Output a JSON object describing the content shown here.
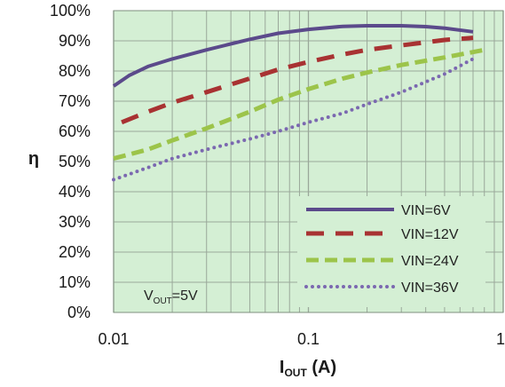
{
  "chart_data": {
    "type": "line",
    "title": "",
    "xlabel": "I",
    "xlabel_sub": "OUT",
    "xlabel_unit": " (A)",
    "ylabel": "η",
    "x_scale": "log",
    "xlim": [
      0.01,
      1
    ],
    "ylim": [
      0,
      100
    ],
    "x_ticks": [
      0.01,
      0.1,
      1
    ],
    "x_tick_labels": [
      "0.01",
      "0.1",
      "1"
    ],
    "y_ticks": [
      0,
      10,
      20,
      30,
      40,
      50,
      60,
      70,
      80,
      90,
      100
    ],
    "y_tick_labels": [
      "0%",
      "10%",
      "20%",
      "30%",
      "40%",
      "50%",
      "60%",
      "70%",
      "80%",
      "90%",
      "100%"
    ],
    "grid": true,
    "background_color": "#d4efd4",
    "grid_color": "#9aa89a",
    "legend_position": "bottom-right",
    "annotation": {
      "prefix": "V",
      "sub": "OUT",
      "suffix": "=5V"
    },
    "series": [
      {
        "name": "VIN=6V",
        "color": "#5b4a8b",
        "dash": "solid",
        "x": [
          0.01,
          0.012,
          0.015,
          0.02,
          0.03,
          0.05,
          0.07,
          0.1,
          0.15,
          0.2,
          0.3,
          0.4,
          0.5,
          0.7
        ],
        "y": [
          75,
          78.5,
          81.5,
          84,
          87,
          90.5,
          92.5,
          93.8,
          94.8,
          95,
          95,
          94.7,
          94.2,
          93
        ]
      },
      {
        "name": "VIN=12V",
        "color": "#a83232",
        "dash": "long-dash",
        "x": [
          0.011,
          0.015,
          0.02,
          0.03,
          0.05,
          0.07,
          0.1,
          0.15,
          0.2,
          0.3,
          0.4,
          0.5,
          0.7
        ],
        "y": [
          63,
          66.5,
          69.5,
          73,
          77.5,
          80.5,
          83,
          85.5,
          87,
          88.5,
          89.5,
          90.3,
          91
        ]
      },
      {
        "name": "VIN=24V",
        "color": "#9cc44a",
        "dash": "dash",
        "x": [
          0.01,
          0.015,
          0.02,
          0.03,
          0.05,
          0.07,
          0.1,
          0.15,
          0.2,
          0.3,
          0.5,
          0.8
        ],
        "y": [
          51,
          54,
          57,
          61,
          66.5,
          70.5,
          74,
          77.5,
          79.5,
          82,
          84.5,
          87
        ]
      },
      {
        "name": "VIN=36V",
        "color": "#7b68b0",
        "dash": "dotted",
        "x": [
          0.01,
          0.015,
          0.02,
          0.03,
          0.05,
          0.07,
          0.1,
          0.15,
          0.2,
          0.3,
          0.5,
          0.7
        ],
        "y": [
          44,
          48,
          51,
          54,
          57.5,
          60,
          63,
          66,
          69,
          73,
          79,
          84
        ]
      }
    ]
  }
}
